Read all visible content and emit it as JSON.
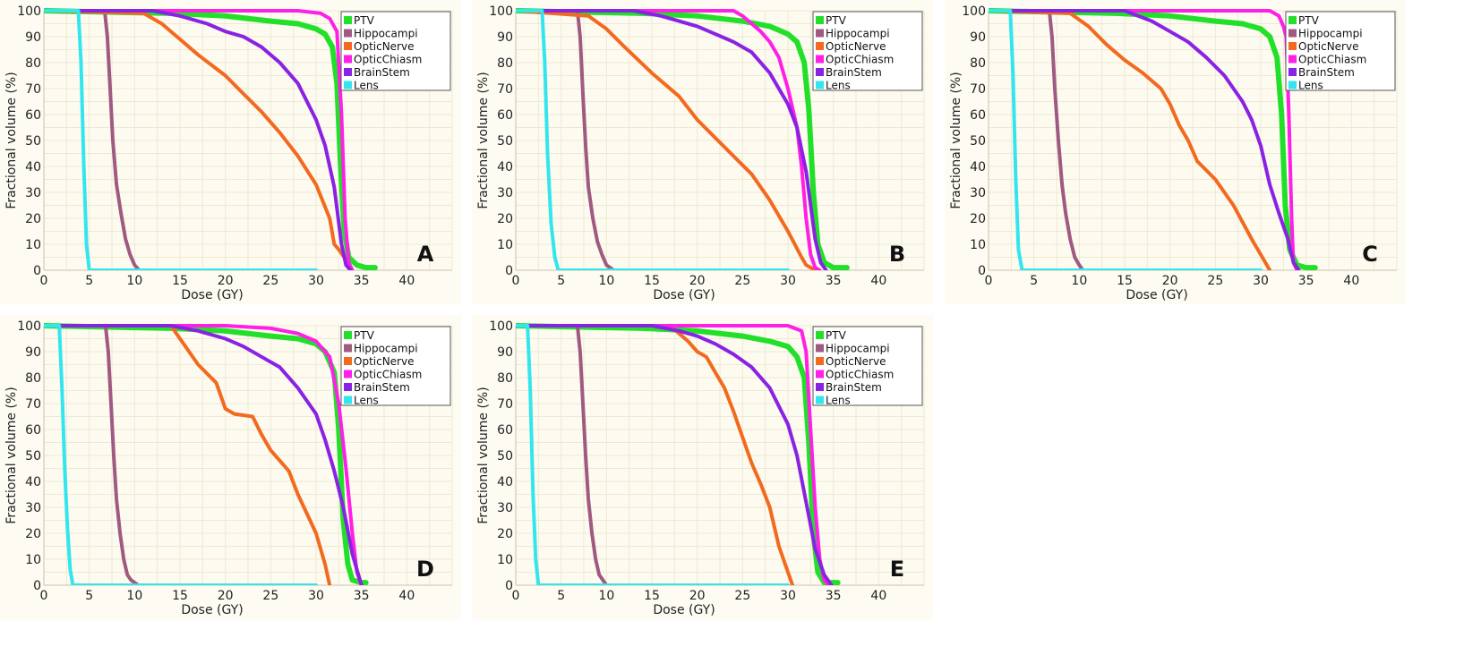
{
  "chart_data": [
    {
      "type": "line",
      "panel_label": "A",
      "xlabel": "Dose (GY)",
      "ylabel": "Fractional volume (%)",
      "xlim": [
        0,
        45
      ],
      "ylim": [
        0,
        100
      ],
      "xticks": [
        0,
        5,
        10,
        15,
        20,
        25,
        30,
        35,
        40
      ],
      "yticks": [
        0,
        10,
        20,
        30,
        40,
        50,
        60,
        70,
        80,
        90,
        100
      ],
      "legend_position": "top-right",
      "series": [
        {
          "name": "PTV",
          "color": "#22e02a",
          "x": [
            0,
            14,
            20,
            25,
            28,
            30,
            31,
            31.8,
            32.3,
            32.7,
            33.1,
            33.6,
            34.5,
            35.5,
            36.5
          ],
          "y": [
            100,
            99,
            98,
            96,
            95,
            93,
            91,
            86,
            72,
            40,
            15,
            5,
            2,
            1,
            1
          ]
        },
        {
          "name": "Hippocampi",
          "color": "#a05a82",
          "x": [
            0,
            6.7,
            7.0,
            7.3,
            7.6,
            8.0,
            8.5,
            9.0,
            9.5,
            10.0,
            10.5
          ],
          "y": [
            100,
            100,
            90,
            70,
            50,
            33,
            22,
            12,
            6,
            2,
            0
          ]
        },
        {
          "name": "OpticNerve",
          "color": "#f26a20",
          "x": [
            0,
            11,
            13,
            15,
            17,
            20,
            22,
            24,
            26,
            28,
            30,
            31.5,
            32,
            32.5,
            33.5,
            34
          ],
          "y": [
            100,
            99,
            95,
            89,
            83,
            75,
            68,
            61,
            53,
            44,
            33,
            20,
            10,
            8,
            3,
            0
          ]
        },
        {
          "name": "OpticChiasm",
          "color": "#ff1fe6",
          "x": [
            0,
            28,
            30.5,
            31.5,
            32.3,
            32.8,
            33.2,
            33.6,
            34
          ],
          "y": [
            100,
            100,
            99,
            97,
            92,
            60,
            20,
            3,
            0
          ]
        },
        {
          "name": "BrainStem",
          "color": "#8a22e3",
          "x": [
            0,
            12,
            15,
            18,
            20,
            22,
            24,
            26,
            28,
            30,
            31,
            32,
            32.8,
            33.3,
            33.8
          ],
          "y": [
            100,
            100,
            98,
            95,
            92,
            90,
            86,
            80,
            72,
            58,
            48,
            32,
            10,
            2,
            0
          ]
        },
        {
          "name": "Lens",
          "color": "#33e6ee",
          "x": [
            0,
            3.8,
            4.1,
            4.4,
            4.7,
            5.0,
            30
          ],
          "y": [
            100,
            100,
            80,
            40,
            10,
            0,
            0
          ]
        }
      ]
    },
    {
      "type": "line",
      "panel_label": "B",
      "xlabel": "Dose (GY)",
      "ylabel": "Fractional volume (%)",
      "xlim": [
        0,
        45
      ],
      "ylim": [
        0,
        100
      ],
      "xticks": [
        0,
        5,
        10,
        15,
        20,
        25,
        30,
        35,
        40
      ],
      "yticks": [
        0,
        10,
        20,
        30,
        40,
        50,
        60,
        70,
        80,
        90,
        100
      ],
      "legend_position": "top-right",
      "series": [
        {
          "name": "PTV",
          "color": "#22e02a",
          "x": [
            0,
            14,
            20,
            25,
            28,
            30,
            31,
            31.8,
            32.3,
            32.8,
            33.3,
            34,
            35,
            36.5
          ],
          "y": [
            100,
            99,
            98,
            96,
            94,
            91,
            88,
            80,
            62,
            30,
            10,
            3,
            1,
            1
          ]
        },
        {
          "name": "Hippocampi",
          "color": "#a05a82",
          "x": [
            0,
            6.8,
            7.1,
            7.4,
            7.7,
            8.0,
            8.5,
            9.0,
            9.5,
            10.0,
            10.8
          ],
          "y": [
            100,
            100,
            90,
            68,
            48,
            32,
            20,
            11,
            6,
            2,
            0
          ]
        },
        {
          "name": "OpticNerve",
          "color": "#f26a20",
          "x": [
            0,
            8,
            10,
            12,
            15,
            18,
            20,
            22,
            24,
            26,
            28,
            30,
            31.5,
            32,
            33
          ],
          "y": [
            100,
            98,
            93,
            86,
            76,
            67,
            58,
            51,
            44,
            37,
            27,
            15,
            5,
            2,
            0
          ]
        },
        {
          "name": "OpticChiasm",
          "color": "#ff1fe6",
          "x": [
            0,
            24,
            25,
            26,
            27,
            28,
            29,
            30,
            31,
            31.5,
            32,
            32.5,
            33,
            33.5
          ],
          "y": [
            100,
            100,
            98,
            95,
            92,
            88,
            82,
            70,
            55,
            40,
            20,
            6,
            1,
            0
          ]
        },
        {
          "name": "BrainStem",
          "color": "#8a22e3",
          "x": [
            0,
            13,
            16,
            18,
            20,
            22,
            24,
            26,
            28,
            30,
            31,
            32,
            33,
            33.6,
            34.2
          ],
          "y": [
            100,
            100,
            98,
            96,
            94,
            91,
            88,
            84,
            76,
            64,
            55,
            38,
            12,
            3,
            0
          ]
        },
        {
          "name": "Lens",
          "color": "#33e6ee",
          "x": [
            0,
            2.9,
            3.2,
            3.5,
            3.9,
            4.3,
            4.7,
            30
          ],
          "y": [
            100,
            100,
            80,
            45,
            18,
            5,
            0,
            0
          ]
        }
      ]
    },
    {
      "type": "line",
      "panel_label": "C",
      "xlabel": "Dose (GY)",
      "ylabel": "Fractional volume (%)",
      "xlim": [
        0,
        45
      ],
      "ylim": [
        0,
        100
      ],
      "xticks": [
        0,
        5,
        10,
        15,
        20,
        25,
        30,
        35,
        40
      ],
      "yticks": [
        0,
        10,
        20,
        30,
        40,
        50,
        60,
        70,
        80,
        90,
        100
      ],
      "legend_position": "top-right",
      "series": [
        {
          "name": "PTV",
          "color": "#22e02a",
          "x": [
            0,
            14,
            20,
            25,
            28,
            30,
            31,
            31.8,
            32.3,
            32.7,
            33.2,
            34,
            35,
            36
          ],
          "y": [
            100,
            99,
            98,
            96,
            95,
            93,
            90,
            82,
            60,
            25,
            8,
            2,
            1,
            1
          ]
        },
        {
          "name": "Hippocampi",
          "color": "#a05a82",
          "x": [
            0,
            6.7,
            7.0,
            7.3,
            7.7,
            8.1,
            8.5,
            9.0,
            9.5,
            10.0,
            10.4
          ],
          "y": [
            100,
            100,
            90,
            70,
            50,
            33,
            22,
            12,
            5,
            2,
            0
          ]
        },
        {
          "name": "OpticNerve",
          "color": "#f26a20",
          "x": [
            0,
            9,
            11,
            13,
            15,
            17,
            19,
            20,
            21,
            22,
            23,
            25,
            27,
            29,
            30.5,
            31
          ],
          "y": [
            100,
            99,
            94,
            87,
            81,
            76,
            70,
            64,
            56,
            50,
            42,
            35,
            25,
            12,
            3,
            0
          ]
        },
        {
          "name": "OpticChiasm",
          "color": "#ff1fe6",
          "x": [
            0,
            31,
            32,
            32.5,
            32.8,
            33.1,
            33.4,
            33.6,
            34
          ],
          "y": [
            100,
            100,
            98,
            94,
            90,
            60,
            20,
            3,
            0
          ]
        },
        {
          "name": "BrainStem",
          "color": "#8a22e3",
          "x": [
            0,
            15,
            18,
            20,
            22,
            24,
            26,
            28,
            29,
            30,
            31,
            32,
            33,
            33.6,
            34.2
          ],
          "y": [
            100,
            100,
            96,
            92,
            88,
            82,
            75,
            65,
            58,
            48,
            33,
            22,
            12,
            3,
            0
          ]
        },
        {
          "name": "Lens",
          "color": "#33e6ee",
          "x": [
            0,
            2.4,
            2.7,
            3.0,
            3.3,
            3.7,
            30
          ],
          "y": [
            100,
            100,
            75,
            35,
            8,
            0,
            0
          ]
        }
      ]
    },
    {
      "type": "line",
      "panel_label": "D",
      "xlabel": "Dose (GY)",
      "ylabel": "Fractional volume (%)",
      "xlim": [
        0,
        45
      ],
      "ylim": [
        0,
        100
      ],
      "xticks": [
        0,
        5,
        10,
        15,
        20,
        25,
        30,
        35,
        40
      ],
      "yticks": [
        0,
        10,
        20,
        30,
        40,
        50,
        60,
        70,
        80,
        90,
        100
      ],
      "legend_position": "top-right",
      "series": [
        {
          "name": "PTV",
          "color": "#22e02a",
          "x": [
            0,
            14,
            20,
            25,
            28,
            30,
            31,
            32,
            32.5,
            33,
            33.5,
            34,
            35,
            35.5
          ],
          "y": [
            100,
            99,
            98,
            96,
            95,
            93,
            90,
            82,
            60,
            25,
            8,
            2,
            1,
            1
          ]
        },
        {
          "name": "Hippocampi",
          "color": "#a05a82",
          "x": [
            0,
            6.8,
            7.1,
            7.4,
            7.7,
            8.0,
            8.4,
            8.8,
            9.2,
            9.6,
            10.4
          ],
          "y": [
            100,
            100,
            90,
            70,
            50,
            33,
            20,
            10,
            4,
            2,
            0
          ]
        },
        {
          "name": "OpticNerve",
          "color": "#f26a20",
          "x": [
            0,
            14,
            15,
            17,
            19,
            20,
            21,
            23,
            24,
            25,
            27,
            28,
            30,
            31,
            31.5
          ],
          "y": [
            100,
            100,
            95,
            85,
            78,
            68,
            66,
            65,
            58,
            52,
            44,
            35,
            20,
            8,
            0
          ]
        },
        {
          "name": "OpticChiasm",
          "color": "#ff1fe6",
          "x": [
            0,
            20,
            25,
            28,
            30,
            31.5,
            32.5,
            33.3,
            34,
            34.5,
            35
          ],
          "y": [
            100,
            100,
            99,
            97,
            94,
            88,
            70,
            45,
            20,
            5,
            0
          ]
        },
        {
          "name": "BrainStem",
          "color": "#8a22e3",
          "x": [
            0,
            14,
            17,
            20,
            22,
            24,
            26,
            28,
            30,
            31,
            32,
            33,
            34,
            35
          ],
          "y": [
            100,
            100,
            98,
            95,
            92,
            88,
            84,
            76,
            66,
            56,
            44,
            30,
            12,
            0
          ]
        },
        {
          "name": "Lens",
          "color": "#33e6ee",
          "x": [
            0,
            1.7,
            2.0,
            2.3,
            2.6,
            2.9,
            3.2,
            30
          ],
          "y": [
            100,
            100,
            75,
            45,
            22,
            6,
            0,
            0
          ]
        }
      ]
    },
    {
      "type": "line",
      "panel_label": "E",
      "xlabel": "Dose (GY)",
      "ylabel": "Fractional volume (%)",
      "xlim": [
        0,
        45
      ],
      "ylim": [
        0,
        100
      ],
      "xticks": [
        0,
        5,
        10,
        15,
        20,
        25,
        30,
        35,
        40
      ],
      "yticks": [
        0,
        10,
        20,
        30,
        40,
        50,
        60,
        70,
        80,
        90,
        100
      ],
      "legend_position": "top-right",
      "series": [
        {
          "name": "PTV",
          "color": "#22e02a",
          "x": [
            0,
            14,
            20,
            25,
            28,
            30,
            31,
            31.8,
            32.3,
            32.8,
            33.3,
            34,
            35,
            35.5
          ],
          "y": [
            100,
            99,
            98,
            96,
            94,
            92,
            88,
            80,
            55,
            20,
            5,
            1,
            1,
            1
          ]
        },
        {
          "name": "Hippocampi",
          "color": "#a05a82",
          "x": [
            0,
            6.8,
            7.1,
            7.4,
            7.7,
            8.0,
            8.4,
            8.8,
            9.2,
            9.6,
            10.0
          ],
          "y": [
            100,
            100,
            90,
            70,
            50,
            33,
            20,
            10,
            4,
            2,
            0
          ]
        },
        {
          "name": "OpticNerve",
          "color": "#f26a20",
          "x": [
            0,
            17,
            18,
            19,
            20,
            21,
            22,
            23,
            24,
            25,
            26,
            27,
            28,
            29,
            30,
            30.5
          ],
          "y": [
            100,
            100,
            97,
            94,
            90,
            88,
            82,
            76,
            67,
            57,
            47,
            39,
            30,
            15,
            5,
            0
          ]
        },
        {
          "name": "OpticChiasm",
          "color": "#ff1fe6",
          "x": [
            0,
            30,
            31.5,
            32,
            32.5,
            33,
            33.5,
            34,
            34.5
          ],
          "y": [
            100,
            100,
            98,
            90,
            60,
            30,
            10,
            2,
            0
          ]
        },
        {
          "name": "BrainStem",
          "color": "#8a22e3",
          "x": [
            0,
            15,
            18,
            20,
            22,
            24,
            26,
            28,
            30,
            31,
            32,
            33,
            34,
            34.8
          ],
          "y": [
            100,
            100,
            98,
            96,
            93,
            89,
            84,
            76,
            62,
            50,
            32,
            14,
            4,
            0
          ]
        },
        {
          "name": "Lens",
          "color": "#33e6ee",
          "x": [
            0,
            1.3,
            1.6,
            1.9,
            2.2,
            2.5,
            30
          ],
          "y": [
            100,
            100,
            75,
            35,
            10,
            0,
            0
          ]
        }
      ]
    }
  ]
}
